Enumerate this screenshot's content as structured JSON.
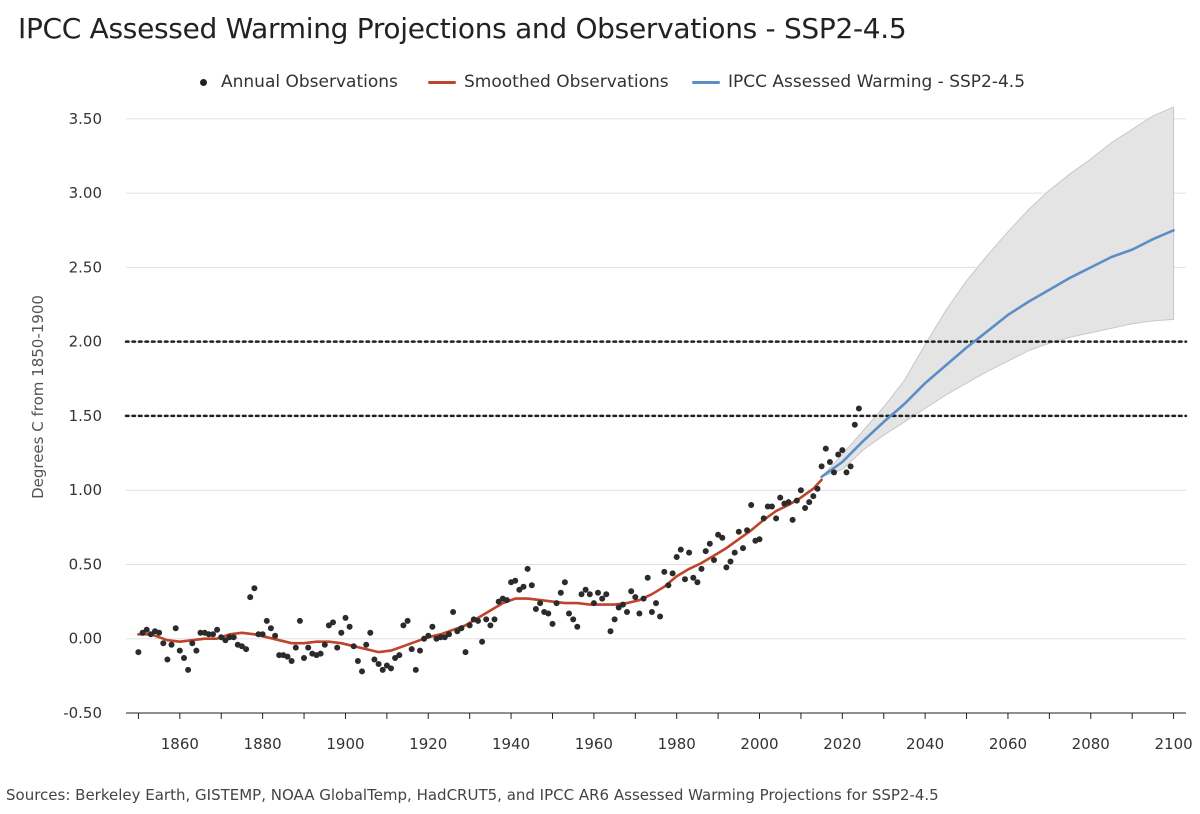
{
  "title": "IPCC Assessed Warming Projections and Observations - SSP2-4.5",
  "sources": "Sources: Berkeley Earth, GISTEMP, NOAA GlobalTemp, HadCRUT5, and IPCC AR6 Assessed Warming Projections for SSP2-4.5",
  "colors": {
    "observations": "#2b2b2b",
    "smoothed": "#c0432b",
    "projection": "#5b8ec6",
    "band": "#e4e4e4",
    "band_edge": "#c8c8c8",
    "grid": "#e0e0e0",
    "threshold": "#222222"
  },
  "chart_data": {
    "type": "line",
    "title": "IPCC Assessed Warming Projections and Observations - SSP2-4.5",
    "xlabel": "",
    "ylabel": "Degrees C from 1850-1900",
    "xlim": [
      1847,
      2103
    ],
    "ylim": [
      -0.5,
      3.6
    ],
    "y_ticks": [
      "3.50",
      "3.00",
      "2.50",
      "2.00",
      "1.50",
      "1.00",
      "0.50",
      "0.00",
      "-0.50"
    ],
    "y_tick_values": [
      3.5,
      3.0,
      2.5,
      2.0,
      1.5,
      1.0,
      0.5,
      0.0,
      -0.5
    ],
    "x_ticks": [
      "1860",
      "1880",
      "1900",
      "1920",
      "1940",
      "1960",
      "1980",
      "2000",
      "2020",
      "2040",
      "2060",
      "2080",
      "2100"
    ],
    "x_tick_values": [
      1860,
      1880,
      1900,
      1920,
      1940,
      1960,
      1980,
      2000,
      2020,
      2040,
      2060,
      2080,
      2100
    ],
    "thresholds": [
      1.5,
      2.0
    ],
    "legend": [
      {
        "label": "Annual Observations",
        "kind": "dot"
      },
      {
        "label": "Smoothed Observations",
        "kind": "line-red"
      },
      {
        "label": "IPCC Assessed Warming - SSP2-4.5",
        "kind": "line-blue"
      }
    ],
    "series": [
      {
        "name": "Annual Observations",
        "kind": "scatter",
        "points": [
          [
            1850,
            -0.09
          ],
          [
            1851,
            0.04
          ],
          [
            1852,
            0.06
          ],
          [
            1853,
            0.03
          ],
          [
            1854,
            0.05
          ],
          [
            1855,
            0.04
          ],
          [
            1856,
            -0.03
          ],
          [
            1857,
            -0.14
          ],
          [
            1858,
            -0.04
          ],
          [
            1859,
            0.07
          ],
          [
            1860,
            -0.08
          ],
          [
            1861,
            -0.13
          ],
          [
            1862,
            -0.21
          ],
          [
            1863,
            -0.03
          ],
          [
            1864,
            -0.08
          ],
          [
            1865,
            0.04
          ],
          [
            1866,
            0.04
          ],
          [
            1867,
            0.03
          ],
          [
            1868,
            0.03
          ],
          [
            1869,
            0.06
          ],
          [
            1870,
            0.01
          ],
          [
            1871,
            -0.01
          ],
          [
            1872,
            0.01
          ],
          [
            1873,
            0.01
          ],
          [
            1874,
            -0.04
          ],
          [
            1875,
            -0.05
          ],
          [
            1876,
            -0.07
          ],
          [
            1877,
            0.28
          ],
          [
            1878,
            0.34
          ],
          [
            1879,
            0.03
          ],
          [
            1880,
            0.03
          ],
          [
            1881,
            0.12
          ],
          [
            1882,
            0.07
          ],
          [
            1883,
            0.02
          ],
          [
            1884,
            -0.11
          ],
          [
            1885,
            -0.11
          ],
          [
            1886,
            -0.12
          ],
          [
            1887,
            -0.15
          ],
          [
            1888,
            -0.06
          ],
          [
            1889,
            0.12
          ],
          [
            1890,
            -0.13
          ],
          [
            1891,
            -0.06
          ],
          [
            1892,
            -0.1
          ],
          [
            1893,
            -0.11
          ],
          [
            1894,
            -0.1
          ],
          [
            1895,
            -0.04
          ],
          [
            1896,
            0.09
          ],
          [
            1897,
            0.11
          ],
          [
            1898,
            -0.06
          ],
          [
            1899,
            0.04
          ],
          [
            1900,
            0.14
          ],
          [
            1901,
            0.08
          ],
          [
            1902,
            -0.05
          ],
          [
            1903,
            -0.15
          ],
          [
            1904,
            -0.22
          ],
          [
            1905,
            -0.04
          ],
          [
            1906,
            0.04
          ],
          [
            1907,
            -0.14
          ],
          [
            1908,
            -0.17
          ],
          [
            1909,
            -0.21
          ],
          [
            1910,
            -0.18
          ],
          [
            1911,
            -0.2
          ],
          [
            1912,
            -0.13
          ],
          [
            1913,
            -0.11
          ],
          [
            1914,
            0.09
          ],
          [
            1915,
            0.12
          ],
          [
            1916,
            -0.07
          ],
          [
            1917,
            -0.21
          ],
          [
            1918,
            -0.08
          ],
          [
            1919,
            0.0
          ],
          [
            1920,
            0.02
          ],
          [
            1921,
            0.08
          ],
          [
            1922,
            0.0
          ],
          [
            1923,
            0.01
          ],
          [
            1924,
            0.01
          ],
          [
            1925,
            0.03
          ],
          [
            1926,
            0.18
          ],
          [
            1927,
            0.05
          ],
          [
            1928,
            0.07
          ],
          [
            1929,
            -0.09
          ],
          [
            1930,
            0.09
          ],
          [
            1931,
            0.13
          ],
          [
            1932,
            0.12
          ],
          [
            1933,
            -0.02
          ],
          [
            1934,
            0.13
          ],
          [
            1935,
            0.09
          ],
          [
            1936,
            0.13
          ],
          [
            1937,
            0.25
          ],
          [
            1938,
            0.27
          ],
          [
            1939,
            0.26
          ],
          [
            1940,
            0.38
          ],
          [
            1941,
            0.39
          ],
          [
            1942,
            0.33
          ],
          [
            1943,
            0.35
          ],
          [
            1944,
            0.47
          ],
          [
            1945,
            0.36
          ],
          [
            1946,
            0.2
          ],
          [
            1947,
            0.24
          ],
          [
            1948,
            0.18
          ],
          [
            1949,
            0.17
          ],
          [
            1950,
            0.1
          ],
          [
            1951,
            0.24
          ],
          [
            1952,
            0.31
          ],
          [
            1953,
            0.38
          ],
          [
            1954,
            0.17
          ],
          [
            1955,
            0.13
          ],
          [
            1956,
            0.08
          ],
          [
            1957,
            0.3
          ],
          [
            1958,
            0.33
          ],
          [
            1959,
            0.3
          ],
          [
            1960,
            0.24
          ],
          [
            1961,
            0.31
          ],
          [
            1962,
            0.27
          ],
          [
            1963,
            0.3
          ],
          [
            1964,
            0.05
          ],
          [
            1965,
            0.13
          ],
          [
            1966,
            0.21
          ],
          [
            1967,
            0.23
          ],
          [
            1968,
            0.18
          ],
          [
            1969,
            0.32
          ],
          [
            1970,
            0.28
          ],
          [
            1971,
            0.17
          ],
          [
            1972,
            0.27
          ],
          [
            1973,
            0.41
          ],
          [
            1974,
            0.18
          ],
          [
            1975,
            0.24
          ],
          [
            1976,
            0.15
          ],
          [
            1977,
            0.45
          ],
          [
            1978,
            0.36
          ],
          [
            1979,
            0.44
          ],
          [
            1980,
            0.55
          ],
          [
            1981,
            0.6
          ],
          [
            1982,
            0.4
          ],
          [
            1983,
            0.58
          ],
          [
            1984,
            0.41
          ],
          [
            1985,
            0.38
          ],
          [
            1986,
            0.47
          ],
          [
            1987,
            0.59
          ],
          [
            1988,
            0.64
          ],
          [
            1989,
            0.53
          ],
          [
            1990,
            0.7
          ],
          [
            1991,
            0.68
          ],
          [
            1992,
            0.48
          ],
          [
            1993,
            0.52
          ],
          [
            1994,
            0.58
          ],
          [
            1995,
            0.72
          ],
          [
            1996,
            0.61
          ],
          [
            1997,
            0.73
          ],
          [
            1998,
            0.9
          ],
          [
            1999,
            0.66
          ],
          [
            2000,
            0.67
          ],
          [
            2001,
            0.81
          ],
          [
            2002,
            0.89
          ],
          [
            2003,
            0.89
          ],
          [
            2004,
            0.81
          ],
          [
            2005,
            0.95
          ],
          [
            2006,
            0.91
          ],
          [
            2007,
            0.92
          ],
          [
            2008,
            0.8
          ],
          [
            2009,
            0.93
          ],
          [
            2010,
            1.0
          ],
          [
            2011,
            0.88
          ],
          [
            2012,
            0.92
          ],
          [
            2013,
            0.96
          ],
          [
            2014,
            1.01
          ],
          [
            2015,
            1.16
          ],
          [
            2016,
            1.28
          ],
          [
            2017,
            1.19
          ],
          [
            2018,
            1.12
          ],
          [
            2019,
            1.24
          ],
          [
            2020,
            1.27
          ],
          [
            2021,
            1.12
          ],
          [
            2022,
            1.16
          ],
          [
            2023,
            1.44
          ],
          [
            2024,
            1.55
          ]
        ]
      },
      {
        "name": "Smoothed Observations",
        "kind": "line",
        "points": [
          [
            1850,
            0.03
          ],
          [
            1853,
            0.03
          ],
          [
            1855,
            0.01
          ],
          [
            1857,
            -0.01
          ],
          [
            1860,
            -0.02
          ],
          [
            1863,
            -0.01
          ],
          [
            1866,
            0.0
          ],
          [
            1869,
            0.0
          ],
          [
            1872,
            0.03
          ],
          [
            1875,
            0.04
          ],
          [
            1878,
            0.03
          ],
          [
            1881,
            0.01
          ],
          [
            1884,
            -0.01
          ],
          [
            1887,
            -0.03
          ],
          [
            1890,
            -0.03
          ],
          [
            1893,
            -0.02
          ],
          [
            1896,
            -0.02
          ],
          [
            1899,
            -0.03
          ],
          [
            1902,
            -0.05
          ],
          [
            1905,
            -0.07
          ],
          [
            1908,
            -0.09
          ],
          [
            1911,
            -0.08
          ],
          [
            1914,
            -0.05
          ],
          [
            1917,
            -0.02
          ],
          [
            1920,
            0.01
          ],
          [
            1923,
            0.03
          ],
          [
            1926,
            0.06
          ],
          [
            1929,
            0.09
          ],
          [
            1932,
            0.14
          ],
          [
            1935,
            0.19
          ],
          [
            1938,
            0.24
          ],
          [
            1941,
            0.27
          ],
          [
            1944,
            0.27
          ],
          [
            1947,
            0.26
          ],
          [
            1950,
            0.25
          ],
          [
            1953,
            0.24
          ],
          [
            1956,
            0.24
          ],
          [
            1959,
            0.23
          ],
          [
            1962,
            0.23
          ],
          [
            1965,
            0.23
          ],
          [
            1968,
            0.24
          ],
          [
            1971,
            0.26
          ],
          [
            1974,
            0.3
          ],
          [
            1977,
            0.35
          ],
          [
            1980,
            0.42
          ],
          [
            1983,
            0.47
          ],
          [
            1986,
            0.51
          ],
          [
            1989,
            0.56
          ],
          [
            1992,
            0.61
          ],
          [
            1995,
            0.67
          ],
          [
            1998,
            0.73
          ],
          [
            2001,
            0.8
          ],
          [
            2004,
            0.86
          ],
          [
            2007,
            0.9
          ],
          [
            2010,
            0.95
          ],
          [
            2013,
            1.01
          ],
          [
            2015,
            1.07
          ]
        ]
      },
      {
        "name": "IPCC Assessed Warming - SSP2-4.5",
        "kind": "line",
        "points": [
          [
            2015,
            1.09
          ],
          [
            2020,
            1.19
          ],
          [
            2025,
            1.33
          ],
          [
            2030,
            1.46
          ],
          [
            2035,
            1.58
          ],
          [
            2040,
            1.72
          ],
          [
            2045,
            1.84
          ],
          [
            2050,
            1.96
          ],
          [
            2055,
            2.07
          ],
          [
            2060,
            2.18
          ],
          [
            2065,
            2.27
          ],
          [
            2070,
            2.35
          ],
          [
            2075,
            2.43
          ],
          [
            2080,
            2.5
          ],
          [
            2085,
            2.57
          ],
          [
            2090,
            2.62
          ],
          [
            2095,
            2.69
          ],
          [
            2100,
            2.75
          ]
        ]
      },
      {
        "name": "Projection Range",
        "kind": "band",
        "lower": [
          [
            2015,
            1.09
          ],
          [
            2020,
            1.14
          ],
          [
            2025,
            1.27
          ],
          [
            2030,
            1.37
          ],
          [
            2035,
            1.46
          ],
          [
            2040,
            1.55
          ],
          [
            2045,
            1.64
          ],
          [
            2050,
            1.72
          ],
          [
            2055,
            1.8
          ],
          [
            2060,
            1.87
          ],
          [
            2065,
            1.94
          ],
          [
            2070,
            1.99
          ],
          [
            2075,
            2.03
          ],
          [
            2080,
            2.06
          ],
          [
            2085,
            2.09
          ],
          [
            2090,
            2.12
          ],
          [
            2095,
            2.14
          ],
          [
            2100,
            2.15
          ]
        ],
        "upper": [
          [
            2015,
            1.09
          ],
          [
            2020,
            1.24
          ],
          [
            2025,
            1.4
          ],
          [
            2030,
            1.56
          ],
          [
            2035,
            1.74
          ],
          [
            2040,
            1.98
          ],
          [
            2045,
            2.21
          ],
          [
            2050,
            2.41
          ],
          [
            2055,
            2.58
          ],
          [
            2060,
            2.74
          ],
          [
            2065,
            2.89
          ],
          [
            2070,
            3.02
          ],
          [
            2075,
            3.13
          ],
          [
            2080,
            3.23
          ],
          [
            2085,
            3.34
          ],
          [
            2090,
            3.43
          ],
          [
            2095,
            3.52
          ],
          [
            2100,
            3.58
          ]
        ]
      }
    ]
  }
}
